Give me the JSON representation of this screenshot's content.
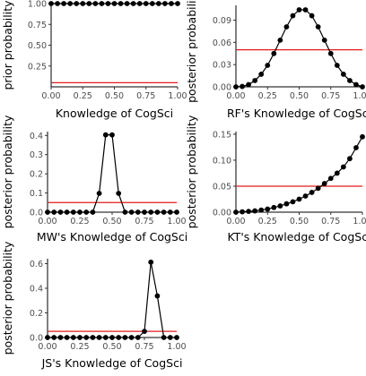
{
  "chart_data": [
    {
      "type": "line",
      "title": "",
      "xlabel": "Knowledge of CogSci",
      "ylabel": "prior probability",
      "xlim": [
        0,
        1
      ],
      "ylim": [
        0,
        1
      ],
      "x_ticks": [
        0,
        0.25,
        0.5,
        0.75,
        1
      ],
      "x_tick_labels": [
        "0.00",
        "0.25",
        "0.50",
        "0.75",
        "1.00"
      ],
      "y_ticks": [
        0.25,
        0.5,
        0.75,
        1
      ],
      "y_tick_labels": [
        "0.25",
        "0.50",
        "0.75",
        "1.00"
      ],
      "grid": false,
      "reference_line": 0.05,
      "reference_color": "#e41a1c",
      "x": [
        0,
        0.05,
        0.1,
        0.15,
        0.2,
        0.25,
        0.3,
        0.35,
        0.4,
        0.45,
        0.5,
        0.55,
        0.6,
        0.65,
        0.7,
        0.75,
        0.8,
        0.85,
        0.9,
        0.95,
        1
      ],
      "values": [
        1,
        1,
        1,
        1,
        1,
        1,
        1,
        1,
        1,
        1,
        1,
        1,
        1,
        1,
        1,
        1,
        1,
        1,
        1,
        1,
        1
      ]
    },
    {
      "type": "line",
      "title": "",
      "xlabel": "RF's Knowledge of CogSci",
      "ylabel": "posterior probability",
      "xlim": [
        0,
        1
      ],
      "ylim": [
        0,
        0.11
      ],
      "x_ticks": [
        0,
        0.25,
        0.5,
        0.75,
        1
      ],
      "x_tick_labels": [
        "0.00",
        "0.25",
        "0.50",
        "0.75",
        "1.00"
      ],
      "y_ticks": [
        0,
        0.03,
        0.06,
        0.09
      ],
      "y_tick_labels": [
        "0.00",
        "0.03",
        "0.06",
        "0.09"
      ],
      "grid": false,
      "reference_line": 0.05,
      "reference_color": "#e41a1c",
      "x": [
        0,
        0.05,
        0.1,
        0.15,
        0.2,
        0.25,
        0.3,
        0.35,
        0.4,
        0.45,
        0.5,
        0.55,
        0.6,
        0.65,
        0.7,
        0.75,
        0.8,
        0.85,
        0.9,
        0.95,
        1
      ],
      "values": [
        0,
        0.0005,
        0.003,
        0.0085,
        0.017,
        0.029,
        0.045,
        0.063,
        0.081,
        0.096,
        0.104,
        0.104,
        0.096,
        0.081,
        0.063,
        0.045,
        0.029,
        0.017,
        0.0085,
        0.003,
        0
      ]
    },
    {
      "type": "line",
      "title": "",
      "xlabel": "MW's Knowledge of CogSci",
      "ylabel": "posterior probability",
      "xlim": [
        0,
        1
      ],
      "ylim": [
        0,
        0.42
      ],
      "x_ticks": [
        0,
        0.25,
        0.5,
        0.75,
        1
      ],
      "x_tick_labels": [
        "0.00",
        "0.25",
        "0.50",
        "0.75",
        "1.00"
      ],
      "y_ticks": [
        0,
        0.1,
        0.2,
        0.3,
        0.4
      ],
      "y_tick_labels": [
        "0.0",
        "0.1",
        "0.2",
        "0.3",
        "0.4"
      ],
      "grid": false,
      "reference_line": 0.05,
      "reference_color": "#e41a1c",
      "x": [
        0,
        0.05,
        0.1,
        0.15,
        0.2,
        0.25,
        0.3,
        0.35,
        0.4,
        0.45,
        0.5,
        0.55,
        0.6,
        0.65,
        0.7,
        0.75,
        0.8,
        0.85,
        0.9,
        0.95,
        1
      ],
      "values": [
        0,
        0,
        0,
        0,
        0,
        0,
        0,
        0,
        0.098,
        0.403,
        0.403,
        0.098,
        0,
        0,
        0,
        0,
        0,
        0,
        0,
        0,
        0
      ]
    },
    {
      "type": "line",
      "title": "",
      "xlabel": "KT's Knowledge of CogSci",
      "ylabel": "posterior probability",
      "xlim": [
        0,
        1
      ],
      "ylim": [
        0,
        0.155
      ],
      "x_ticks": [
        0,
        0.25,
        0.5,
        0.75,
        1
      ],
      "x_tick_labels": [
        "0.00",
        "0.25",
        "0.50",
        "0.75",
        "1.00"
      ],
      "y_ticks": [
        0,
        0.05,
        0.1,
        0.15
      ],
      "y_tick_labels": [
        "0.00",
        "0.05",
        "0.10",
        "0.15"
      ],
      "grid": false,
      "reference_line": 0.05,
      "reference_color": "#e41a1c",
      "x": [
        0,
        0.05,
        0.1,
        0.15,
        0.2,
        0.25,
        0.3,
        0.35,
        0.4,
        0.45,
        0.5,
        0.55,
        0.6,
        0.65,
        0.7,
        0.75,
        0.8,
        0.85,
        0.9,
        0.95,
        1
      ],
      "values": [
        0,
        0.0007,
        0.0015,
        0.0025,
        0.004,
        0.006,
        0.009,
        0.012,
        0.016,
        0.02,
        0.025,
        0.031,
        0.038,
        0.046,
        0.055,
        0.065,
        0.075,
        0.087,
        0.103,
        0.124,
        0.145
      ]
    },
    {
      "type": "line",
      "title": "",
      "xlabel": "JS's Knowledge of CogSci",
      "ylabel": "posterior probability",
      "xlim": [
        0,
        1
      ],
      "ylim": [
        0,
        0.64
      ],
      "x_ticks": [
        0,
        0.25,
        0.5,
        0.75,
        1
      ],
      "x_tick_labels": [
        "0.00",
        "0.25",
        "0.50",
        "0.75",
        "1.00"
      ],
      "y_ticks": [
        0,
        0.2,
        0.4,
        0.6
      ],
      "y_tick_labels": [
        "0.0",
        "0.2",
        "0.4",
        "0.6"
      ],
      "grid": false,
      "reference_line": 0.05,
      "reference_color": "#e41a1c",
      "x": [
        0,
        0.05,
        0.1,
        0.15,
        0.2,
        0.25,
        0.3,
        0.35,
        0.4,
        0.45,
        0.5,
        0.55,
        0.6,
        0.65,
        0.7,
        0.75,
        0.8,
        0.85,
        0.9,
        0.95,
        1
      ],
      "values": [
        0,
        0,
        0,
        0,
        0,
        0,
        0,
        0,
        0,
        0,
        0,
        0,
        0,
        0,
        0,
        0.05,
        0.612,
        0.338,
        0,
        0,
        0
      ]
    }
  ]
}
